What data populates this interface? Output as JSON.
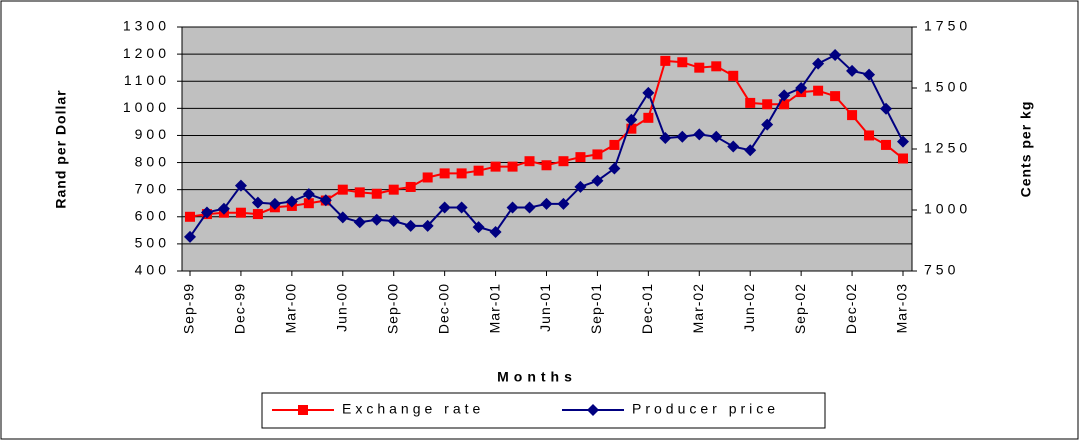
{
  "chart_data": {
    "type": "line",
    "x_label": "Months",
    "y_label": "Rand per Dollar",
    "y2_label": "Cents per kg",
    "categories": [
      "Sep-99",
      null,
      null,
      "Dec-99",
      null,
      null,
      "Mar-00",
      null,
      null,
      "Jun-00",
      null,
      null,
      "Sep-00",
      null,
      null,
      "Dec-00",
      null,
      null,
      "Mar-01",
      null,
      null,
      "Jun-01",
      null,
      null,
      "Sep-01",
      null,
      null,
      "Dec-01",
      null,
      null,
      "Mar-02",
      null,
      null,
      "Jun-02",
      null,
      null,
      "Sep-02",
      null,
      null,
      "Dec-02",
      null,
      null,
      "Mar-03"
    ],
    "series": [
      {
        "name": "Exchange rate",
        "color": "#ff0000",
        "marker": "square",
        "values": [
          600,
          610,
          615,
          615,
          610,
          635,
          640,
          650,
          660,
          700,
          690,
          685,
          700,
          710,
          745,
          760,
          760,
          770,
          785,
          785,
          805,
          790,
          805,
          820,
          830,
          865,
          925,
          965,
          1175,
          1170,
          1150,
          1155,
          1120,
          1020,
          1015,
          1015,
          1060,
          1065,
          1045,
          975,
          900,
          865,
          815
        ]
      },
      {
        "name": "Producer price",
        "color": "#000080",
        "marker": "diamond",
        "axis": "y2",
        "values": [
          890,
          990,
          1005,
          1100,
          1030,
          1025,
          1035,
          1065,
          1040,
          970,
          950,
          960,
          955,
          935,
          935,
          1010,
          1010,
          930,
          910,
          1010,
          1010,
          1025,
          1025,
          1095,
          1120,
          1170,
          1370,
          1480,
          1295,
          1300,
          1310,
          1300,
          1260,
          1245,
          1350,
          1470,
          1500,
          1600,
          1635,
          1570,
          1555,
          1415,
          1280
        ]
      }
    ],
    "ylim": [
      400,
      1300
    ],
    "yticks": [
      400,
      500,
      600,
      700,
      800,
      900,
      1000,
      1100,
      1200,
      1300
    ],
    "y2lim": [
      750,
      1750
    ],
    "y2ticks": [
      750,
      1000,
      1250,
      1500,
      1750
    ],
    "grid": true,
    "legend": "bottom"
  }
}
